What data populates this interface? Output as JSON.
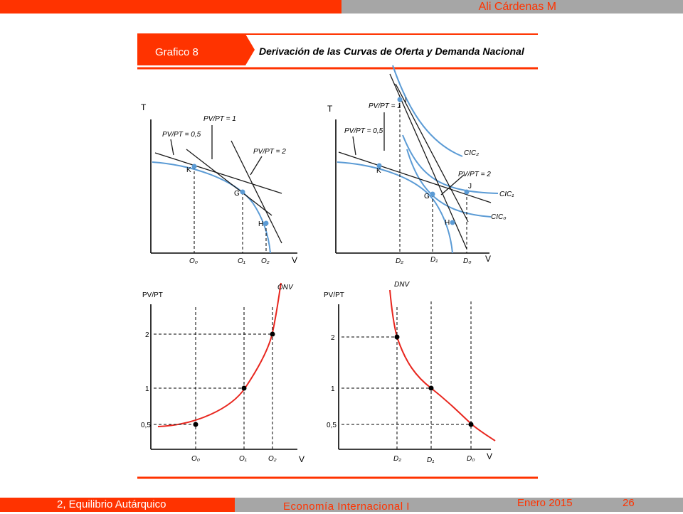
{
  "header": {
    "author": "Ali Cárdenas M"
  },
  "figure": {
    "tag": "Grafico 8",
    "title": "Derivación de las Curvas de Oferta y Demanda Nacional",
    "top_left": {
      "y_axis": "T",
      "x_axis": "V",
      "points": [
        "K",
        "G",
        "H"
      ],
      "x_ticks": [
        "O₀",
        "O₁",
        "O₂"
      ],
      "ratio_labels": [
        "PV/PT = 0,5",
        "PV/PT = 1",
        "PV/PT = 2"
      ]
    },
    "top_right": {
      "y_axis": "T",
      "x_axis": "V",
      "points": [
        "I",
        "K",
        "G",
        "H",
        "J"
      ],
      "x_ticks": [
        "D₂",
        "D₁",
        "D₀"
      ],
      "ratio_labels": [
        "PV/PT = 1",
        "PV/PT = 0,5",
        "PV/PT = 2"
      ],
      "curves": [
        "CIC₂",
        "CIC₁",
        "CIC₀"
      ]
    },
    "bottom_left": {
      "y_axis": "PV/PT",
      "x_axis": "V",
      "y_ticks": [
        "2",
        "1",
        "0,5"
      ],
      "x_ticks": [
        "O₀",
        "O₁",
        "O₂"
      ],
      "curve": "ONV"
    },
    "bottom_right": {
      "y_axis": "PV/PT",
      "x_axis": "V",
      "y_ticks": [
        "2",
        "1",
        "0,5"
      ],
      "x_ticks": [
        "D₂",
        "D₁",
        "D₀"
      ],
      "curve": "DNV"
    }
  },
  "footer": {
    "section": "2, Equilibrio Autárquico",
    "course": "Economía Internacional I",
    "date": "Enero 2015",
    "page": "26"
  },
  "colors": {
    "accent": "#ff3300",
    "gray": "#a6a6a6",
    "blue_curve": "#5b9bd5",
    "red_curve": "#e8261e"
  }
}
